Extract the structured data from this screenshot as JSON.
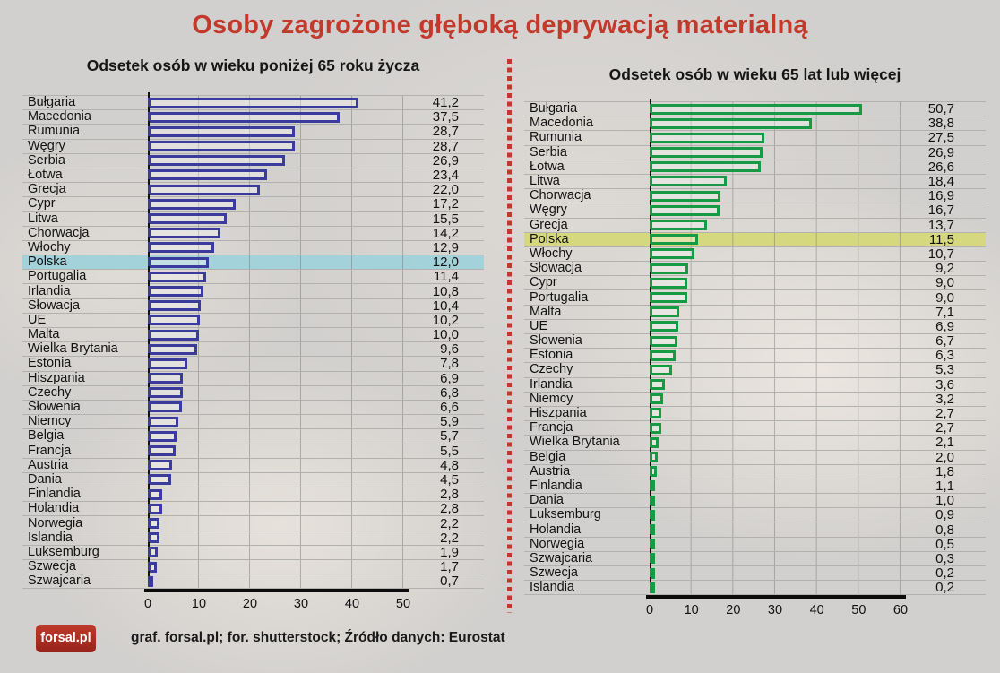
{
  "title": "Osoby zagrożone głęboką deprywacją materialną",
  "colors": {
    "title_red": "#c23a2b",
    "divider_red": "#c0392b",
    "left_bar": "#3b3b9d",
    "right_bar": "#169a44",
    "left_highlight": "#a3d2da",
    "right_highlight": "#d6d87f",
    "axis_black": "#0c0c0c",
    "row_line": "#b3b1ae",
    "background": "#d2d0ce"
  },
  "footer": {
    "logo_text": "forsal.pl",
    "credit": "graf. forsal.pl; for. shutterstock;  Źródło danych:  Eurostat"
  },
  "chart_data": [
    {
      "type": "bar",
      "orientation": "horizontal",
      "title": "Odsetek osób w wieku poniżej 65 roku życza",
      "bar_color": "#3b3b9d",
      "highlight_category": "Polska",
      "highlight_color": "#a3d2da",
      "xlim": [
        0,
        50
      ],
      "xticks": [
        0,
        10,
        20,
        30,
        40,
        50
      ],
      "grid": true,
      "categories": [
        "Bułgaria",
        "Macedonia",
        "Rumunia",
        "Węgry",
        "Serbia",
        "Łotwa",
        "Grecja",
        "Cypr",
        "Litwa",
        "Chorwacja",
        "Włochy",
        "Polska",
        "Portugalia",
        "Irlandia",
        "Słowacja",
        "UE",
        "Malta",
        "Wielka Brytania",
        "Estonia",
        "Hiszpania",
        "Czechy",
        "Słowenia",
        "Niemcy",
        "Belgia",
        "Francja",
        "Austria",
        "Dania",
        "Finlandia",
        "Holandia",
        "Norwegia",
        "Islandia",
        "Luksemburg",
        "Szwecja",
        "Szwajcaria"
      ],
      "values": [
        41.2,
        37.5,
        28.7,
        28.7,
        26.9,
        23.4,
        22.0,
        17.2,
        15.5,
        14.2,
        12.9,
        12.0,
        11.4,
        10.8,
        10.4,
        10.2,
        10.0,
        9.6,
        7.8,
        6.9,
        6.8,
        6.6,
        5.9,
        5.7,
        5.5,
        4.8,
        4.5,
        2.8,
        2.8,
        2.2,
        2.2,
        1.9,
        1.7,
        0.7
      ]
    },
    {
      "type": "bar",
      "orientation": "horizontal",
      "title": "Odsetek osób w wieku 65 lat lub więcej",
      "bar_color": "#169a44",
      "highlight_category": "Polska",
      "highlight_color": "#d6d87f",
      "xlim": [
        0,
        60
      ],
      "xticks": [
        0,
        10,
        20,
        30,
        40,
        50,
        60
      ],
      "grid": true,
      "categories": [
        "Bułgaria",
        "Macedonia",
        "Rumunia",
        "Serbia",
        "Łotwa",
        "Litwa",
        "Chorwacja",
        "Węgry",
        "Grecja",
        "Polska",
        "Włochy",
        "Słowacja",
        "Cypr",
        "Portugalia",
        "Malta",
        "UE",
        "Słowenia",
        "Estonia",
        "Czechy",
        "Irlandia",
        "Niemcy",
        "Hiszpania",
        "Francja",
        "Wielka Brytania",
        "Belgia",
        "Austria",
        "Finlandia",
        "Dania",
        "Luksemburg",
        "Holandia",
        "Norwegia",
        "Szwajcaria",
        "Szwecja",
        "Islandia"
      ],
      "values": [
        50.7,
        38.8,
        27.5,
        26.9,
        26.6,
        18.4,
        16.9,
        16.7,
        13.7,
        11.5,
        10.7,
        9.2,
        9.0,
        9.0,
        7.1,
        6.9,
        6.7,
        6.3,
        5.3,
        3.6,
        3.2,
        2.7,
        2.7,
        2.1,
        2.0,
        1.8,
        1.1,
        1.0,
        0.9,
        0.8,
        0.5,
        0.3,
        0.2,
        0.2
      ]
    }
  ]
}
